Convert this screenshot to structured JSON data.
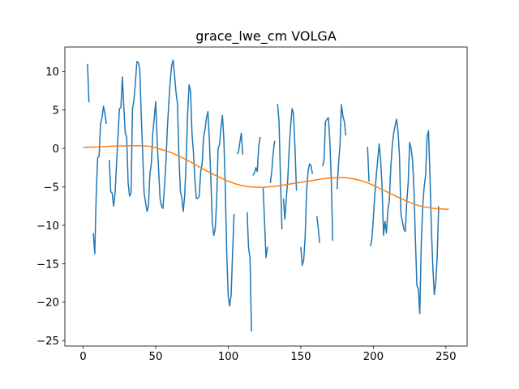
{
  "chart_data": {
    "type": "line",
    "title": "grace_lwe_cm VOLGA",
    "xlabel": "",
    "ylabel": "",
    "xlim": [
      -12.6,
      264.6
    ],
    "ylim": [
      -25.7,
      13.2
    ],
    "grid": false,
    "legend": "none",
    "xticks": [
      0,
      50,
      100,
      150,
      200,
      250
    ],
    "yticks": [
      10,
      5,
      0,
      -5,
      -10,
      -15,
      -20,
      -25
    ],
    "series": [
      {
        "color": "#1f77b4",
        "points": [
          [
            3,
            11.0
          ],
          [
            4,
            6.0
          ],
          [
            null,
            null
          ],
          [
            7,
            -11.0
          ],
          [
            8,
            -13.7
          ],
          [
            9,
            -6.0
          ],
          [
            10,
            -1.2
          ],
          [
            11,
            -1.0
          ],
          [
            12,
            3.3
          ],
          [
            13,
            4.0
          ],
          [
            14,
            5.5
          ],
          [
            15,
            4.5
          ],
          [
            16,
            3.2
          ],
          [
            null,
            null
          ],
          [
            18,
            -1.5
          ],
          [
            19,
            -5.6
          ],
          [
            20,
            -5.8
          ],
          [
            21,
            -7.5
          ],
          [
            22,
            -5.8
          ],
          [
            23,
            -2.0
          ],
          [
            24,
            1.5
          ],
          [
            25,
            5.2
          ],
          [
            26,
            5.3
          ],
          [
            27,
            9.3
          ],
          [
            28,
            5.5
          ],
          [
            29,
            2.0
          ],
          [
            30,
            1.5
          ],
          [
            31,
            -4.5
          ],
          [
            32,
            -6.2
          ],
          [
            33,
            -5.8
          ],
          [
            34,
            5.2
          ],
          [
            35,
            6.3
          ],
          [
            36,
            8.5
          ],
          [
            37,
            11.3
          ],
          [
            38,
            11.2
          ],
          [
            39,
            10.3
          ],
          [
            40,
            4.5
          ],
          [
            41,
            -0.5
          ],
          [
            42,
            -5.8
          ],
          [
            43,
            -7.0
          ],
          [
            44,
            -8.2
          ],
          [
            45,
            -7.5
          ],
          [
            46,
            -3.3
          ],
          [
            47,
            -2.0
          ],
          [
            48,
            2.0
          ],
          [
            49,
            4.0
          ],
          [
            50,
            6.1
          ],
          [
            51,
            1.0
          ],
          [
            52,
            -2.8
          ],
          [
            53,
            -6.5
          ],
          [
            54,
            -7.5
          ],
          [
            55,
            -7.8
          ],
          [
            56,
            -5.0
          ],
          [
            57,
            -2.0
          ],
          [
            58,
            2.5
          ],
          [
            59,
            5.8
          ],
          [
            60,
            8.8
          ],
          [
            61,
            10.8
          ],
          [
            62,
            11.5
          ],
          [
            63,
            9.5
          ],
          [
            64,
            7.3
          ],
          [
            65,
            5.8
          ],
          [
            66,
            -1.0
          ],
          [
            67,
            -5.5
          ],
          [
            68,
            -6.5
          ],
          [
            69,
            -8.2
          ],
          [
            70,
            -6.0
          ],
          [
            71,
            -1.5
          ],
          [
            72,
            4.5
          ],
          [
            73,
            8.3
          ],
          [
            74,
            7.5
          ],
          [
            75,
            2.0
          ],
          [
            76,
            -0.5
          ],
          [
            77,
            -4.0
          ],
          [
            78,
            -6.5
          ],
          [
            79,
            -6.5
          ],
          [
            80,
            -6.2
          ],
          [
            81,
            -3.0
          ],
          [
            82,
            -2.0
          ],
          [
            83,
            1.5
          ],
          [
            84,
            2.5
          ],
          [
            85,
            4.0
          ],
          [
            86,
            4.8
          ],
          [
            87,
            1.0
          ],
          [
            88,
            -4.0
          ],
          [
            89,
            -9.5
          ],
          [
            90,
            -11.3
          ],
          [
            91,
            -10.5
          ],
          [
            92,
            -6.8
          ],
          [
            93,
            0.0
          ],
          [
            94,
            0.5
          ],
          [
            95,
            2.7
          ],
          [
            96,
            4.3
          ],
          [
            97,
            1.0
          ],
          [
            98,
            -5.5
          ],
          [
            99,
            -14.0
          ],
          [
            100,
            -19.3
          ],
          [
            101,
            -20.5
          ],
          [
            102,
            -19.0
          ],
          [
            103,
            -13.5
          ],
          [
            104,
            -8.5
          ],
          [
            null,
            null
          ],
          [
            106,
            -0.7
          ],
          [
            107,
            -0.5
          ],
          [
            108,
            0.8
          ],
          [
            109,
            2.0
          ],
          [
            110,
            -0.8
          ],
          [
            null,
            null
          ],
          [
            113,
            -8.3
          ],
          [
            114,
            -13.0
          ],
          [
            115,
            -14.2
          ],
          [
            116,
            -23.8
          ],
          [
            null,
            null
          ],
          [
            117,
            -3.5
          ],
          [
            118,
            -3.2
          ],
          [
            119,
            -2.5
          ],
          [
            120,
            -3.0
          ],
          [
            121,
            0.3
          ],
          [
            122,
            1.5
          ],
          [
            null,
            null
          ],
          [
            124,
            -5.0
          ],
          [
            125,
            -9.5
          ],
          [
            126,
            -14.2
          ],
          [
            127,
            -12.8
          ],
          [
            null,
            null
          ],
          [
            129,
            -4.5
          ],
          [
            130,
            -3.0
          ],
          [
            131,
            -0.5
          ],
          [
            132,
            1.0
          ],
          [
            null,
            null
          ],
          [
            134,
            5.8
          ],
          [
            135,
            3.5
          ],
          [
            136,
            -4.0
          ],
          [
            137,
            -10.5
          ],
          [
            null,
            null
          ],
          [
            138,
            -6.5
          ],
          [
            139,
            -9.2
          ],
          [
            140,
            -6.5
          ],
          [
            141,
            -4.0
          ],
          [
            142,
            0.0
          ],
          [
            143,
            3.0
          ],
          [
            144,
            5.2
          ],
          [
            145,
            4.5
          ],
          [
            146,
            0.0
          ],
          [
            147,
            -5.5
          ],
          [
            null,
            null
          ],
          [
            150,
            -12.8
          ],
          [
            151,
            -15.2
          ],
          [
            152,
            -14.5
          ],
          [
            153,
            -11.5
          ],
          [
            154,
            -5.5
          ],
          [
            155,
            -3.0
          ],
          [
            156,
            -2.0
          ],
          [
            157,
            -2.2
          ],
          [
            158,
            -3.3
          ],
          [
            null,
            null
          ],
          [
            161,
            -8.8
          ],
          [
            162,
            -10.3
          ],
          [
            163,
            -12.3
          ],
          [
            null,
            null
          ],
          [
            165,
            -2.3
          ],
          [
            166,
            -1.5
          ],
          [
            167,
            3.5
          ],
          [
            168,
            3.8
          ],
          [
            169,
            4.0
          ],
          [
            170,
            1.0
          ],
          [
            171,
            -4.0
          ],
          [
            172,
            -12.0
          ],
          [
            null,
            null
          ],
          [
            175,
            -5.3
          ],
          [
            176,
            -2.0
          ],
          [
            177,
            0.5
          ],
          [
            178,
            5.7
          ],
          [
            179,
            4.2
          ],
          [
            180,
            3.5
          ],
          [
            181,
            1.7
          ],
          [
            null,
            null
          ],
          [
            196,
            0.2
          ],
          [
            197,
            -4.3
          ],
          [
            null,
            null
          ],
          [
            198,
            -12.7
          ],
          [
            199,
            -11.8
          ],
          [
            200,
            -9.0
          ],
          [
            201,
            -6.0
          ],
          [
            202,
            -3.5
          ],
          [
            203,
            -1.5
          ],
          [
            204,
            0.6
          ],
          [
            205,
            -1.5
          ],
          [
            206,
            -5.0
          ],
          [
            207,
            -11.3
          ],
          [
            208,
            -9.5
          ],
          [
            209,
            -11.0
          ],
          [
            210,
            -8.0
          ],
          [
            211,
            -6.8
          ],
          [
            212,
            -2.5
          ],
          [
            213,
            0.3
          ],
          [
            214,
            2.0
          ],
          [
            215,
            3.0
          ],
          [
            216,
            3.8
          ],
          [
            217,
            2.2
          ],
          [
            218,
            -1.0
          ],
          [
            219,
            -8.5
          ],
          [
            220,
            -9.5
          ],
          [
            221,
            -10.5
          ],
          [
            222,
            -10.8
          ],
          [
            223,
            -7.0
          ],
          [
            224,
            -4.5
          ],
          [
            225,
            0.8
          ],
          [
            226,
            0.0
          ],
          [
            227,
            -1.5
          ],
          [
            228,
            -5.5
          ],
          [
            229,
            -12.0
          ],
          [
            230,
            -17.8
          ],
          [
            231,
            -18.3
          ],
          [
            232,
            -21.5
          ],
          [
            233,
            -12.5
          ],
          [
            234,
            -7.5
          ],
          [
            235,
            -5.0
          ],
          [
            236,
            -3.5
          ],
          [
            237,
            1.5
          ],
          [
            238,
            2.3
          ],
          [
            239,
            -3.5
          ],
          [
            240,
            -10.5
          ],
          [
            241,
            -15.5
          ],
          [
            242,
            -19.0
          ],
          [
            243,
            -17.5
          ],
          [
            244,
            -14.0
          ],
          [
            245,
            -7.5
          ]
        ]
      },
      {
        "color": "#ff7f0e",
        "points": [
          [
            0,
            0.15
          ],
          [
            10,
            0.2
          ],
          [
            20,
            0.3
          ],
          [
            30,
            0.35
          ],
          [
            40,
            0.35
          ],
          [
            45,
            0.3
          ],
          [
            50,
            0.1
          ],
          [
            55,
            -0.2
          ],
          [
            60,
            -0.5
          ],
          [
            65,
            -0.9
          ],
          [
            70,
            -1.35
          ],
          [
            75,
            -1.85
          ],
          [
            80,
            -2.4
          ],
          [
            85,
            -2.9
          ],
          [
            90,
            -3.4
          ],
          [
            95,
            -3.85
          ],
          [
            100,
            -4.25
          ],
          [
            105,
            -4.6
          ],
          [
            110,
            -4.85
          ],
          [
            115,
            -5.0
          ],
          [
            120,
            -5.05
          ],
          [
            125,
            -5.05
          ],
          [
            130,
            -4.95
          ],
          [
            135,
            -4.85
          ],
          [
            140,
            -4.7
          ],
          [
            145,
            -4.55
          ],
          [
            150,
            -4.4
          ],
          [
            155,
            -4.25
          ],
          [
            160,
            -4.1
          ],
          [
            165,
            -3.95
          ],
          [
            170,
            -3.85
          ],
          [
            175,
            -3.8
          ],
          [
            180,
            -3.8
          ],
          [
            185,
            -3.9
          ],
          [
            190,
            -4.1
          ],
          [
            195,
            -4.4
          ],
          [
            200,
            -4.8
          ],
          [
            205,
            -5.25
          ],
          [
            210,
            -5.7
          ],
          [
            215,
            -6.15
          ],
          [
            220,
            -6.6
          ],
          [
            225,
            -7.0
          ],
          [
            230,
            -7.35
          ],
          [
            235,
            -7.6
          ],
          [
            240,
            -7.75
          ],
          [
            245,
            -7.85
          ],
          [
            250,
            -7.9
          ],
          [
            252,
            -7.9
          ]
        ]
      }
    ]
  }
}
